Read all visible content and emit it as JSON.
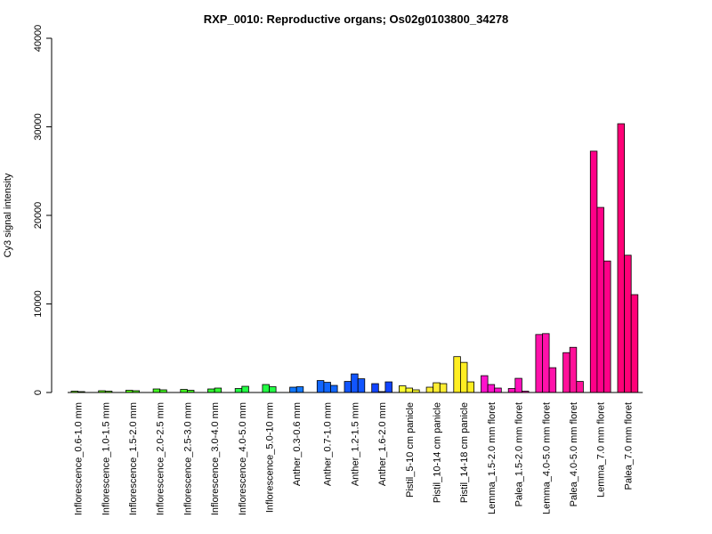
{
  "chart_data": {
    "type": "bar",
    "title": "RXP_0010: Reproductive organs; Os02g0103800_34278",
    "ylabel": "Cy3 signal intensity",
    "xlabel": "",
    "ylim": [
      0,
      40000
    ],
    "yticks": [
      0,
      10000,
      20000,
      30000,
      40000
    ],
    "yticks_labels": [
      "0",
      "10000",
      "20000",
      "30000",
      "40000"
    ],
    "grid": false,
    "legend": "none",
    "groups": [
      {
        "label": "Inflorescence_0.6-1.0 mm",
        "color": "#66ff00",
        "values": [
          150,
          100
        ]
      },
      {
        "label": "Inflorescence_1.0-1.5 mm",
        "color": "#66ff00",
        "values": [
          200,
          150
        ]
      },
      {
        "label": "Inflorescence_1.5-2.0 mm",
        "color": "#55ff11",
        "values": [
          250,
          200
        ]
      },
      {
        "label": "Inflorescence_2.0-2.5 mm",
        "color": "#44ff22",
        "values": [
          400,
          300
        ]
      },
      {
        "label": "Inflorescence_2.5-3.0 mm",
        "color": "#44ff22",
        "values": [
          350,
          250
        ]
      },
      {
        "label": "Inflorescence_3.0-4.0 mm",
        "color": "#33ff33",
        "values": [
          400,
          500
        ]
      },
      {
        "label": "Inflorescence_4.0-5.0 mm",
        "color": "#22ff44",
        "values": [
          450,
          700
        ]
      },
      {
        "label": "Inflorescence_5.0-10 mm",
        "color": "#22ff44",
        "values": [
          900,
          650
        ]
      },
      {
        "label": "Anther_0.3-0.6 mm",
        "color": "#1177ff",
        "values": [
          600,
          650
        ]
      },
      {
        "label": "Anther_0.7-1.0 mm",
        "color": "#1166ff",
        "values": [
          1350,
          1150,
          800
        ]
      },
      {
        "label": "Anther_1.2-1.5 mm",
        "color": "#1155ff",
        "values": [
          1250,
          2100,
          1550
        ]
      },
      {
        "label": "Anther_1.6-2.0 mm",
        "color": "#1144ff",
        "values": [
          1000,
          100,
          1200
        ]
      },
      {
        "label": "Pistil_5-10 cm panicle",
        "color": "#ffff33",
        "values": [
          750,
          500,
          300
        ]
      },
      {
        "label": "Pistil_10-14 cm panicle",
        "color": "#ffee33",
        "values": [
          600,
          1100,
          1000
        ]
      },
      {
        "label": "Pistil_14-18 cm panicle",
        "color": "#ffee22",
        "values": [
          4050,
          3400,
          1200
        ]
      },
      {
        "label": "Lemma_1.5-2.0 mm floret",
        "color": "#ff11cc",
        "values": [
          1900,
          900,
          500
        ]
      },
      {
        "label": "Palea_1.5-2.0 mm floret",
        "color": "#ff11bb",
        "values": [
          450,
          1600,
          150
        ]
      },
      {
        "label": "Lemma_4.0-5.0 mm floret",
        "color": "#ff11aa",
        "values": [
          6550,
          6650,
          2800
        ]
      },
      {
        "label": "Palea_4.0-5.0 mm floret",
        "color": "#ff1199",
        "values": [
          4500,
          5100,
          1250
        ]
      },
      {
        "label": "Lemma_7.0 mm floret",
        "color": "#ff0088",
        "values": [
          27250,
          20900,
          14850
        ]
      },
      {
        "label": "Palea_7.0 mm floret",
        "color": "#ff0077",
        "values": [
          30350,
          15500,
          11050
        ]
      }
    ]
  }
}
